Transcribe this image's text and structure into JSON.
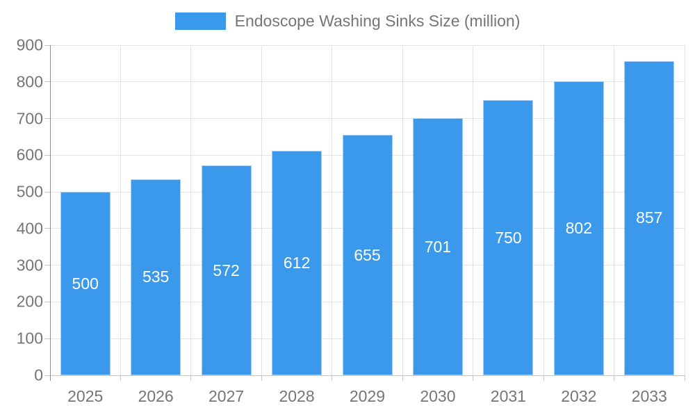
{
  "chart_data": {
    "type": "bar",
    "title": "",
    "legend": {
      "label": "Endoscope Washing Sinks Size (million)",
      "position": "top-center"
    },
    "categories": [
      "2025",
      "2026",
      "2027",
      "2028",
      "2029",
      "2030",
      "2031",
      "2032",
      "2033"
    ],
    "values": [
      500,
      535,
      572,
      612,
      655,
      701,
      750,
      802,
      857
    ],
    "value_labels": [
      "500",
      "535",
      "572",
      "612",
      "655",
      "701",
      "750",
      "802",
      "857"
    ],
    "xlabel": "",
    "ylabel": "",
    "ylim": [
      0,
      900
    ],
    "ytick_step": 100,
    "yticks": [
      "0",
      "100",
      "200",
      "300",
      "400",
      "500",
      "600",
      "700",
      "800",
      "900"
    ],
    "grid": true,
    "legend_visible": true,
    "colors": {
      "bar": "#3B99EC",
      "bar_edge": "#A9CFF5",
      "value_label": "#FFFFFF",
      "axis_text": "#757575",
      "gridline": "#E2E2E2",
      "y_axis_line": "#8C8C8C",
      "x_axis_line": "#C4C4C4",
      "tick_line": "#C9C9C9",
      "background": "#FFFFFF"
    }
  }
}
